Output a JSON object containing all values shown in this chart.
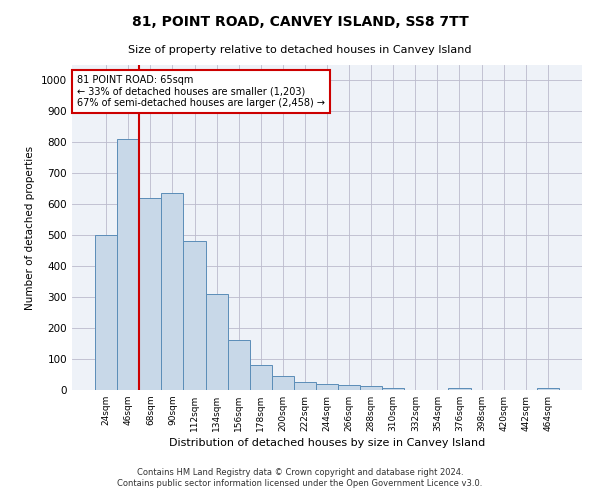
{
  "title": "81, POINT ROAD, CANVEY ISLAND, SS8 7TT",
  "subtitle": "Size of property relative to detached houses in Canvey Island",
  "xlabel": "Distribution of detached houses by size in Canvey Island",
  "ylabel": "Number of detached properties",
  "bar_color": "#c8d8e8",
  "bar_edge_color": "#5b8db8",
  "grid_color": "#bbbbcc",
  "bg_color": "#eef2f8",
  "annotation_box_color": "#cc0000",
  "vline_color": "#cc0000",
  "categories": [
    "24sqm",
    "46sqm",
    "68sqm",
    "90sqm",
    "112sqm",
    "134sqm",
    "156sqm",
    "178sqm",
    "200sqm",
    "222sqm",
    "244sqm",
    "266sqm",
    "288sqm",
    "310sqm",
    "332sqm",
    "354sqm",
    "376sqm",
    "398sqm",
    "420sqm",
    "442sqm",
    "464sqm"
  ],
  "values": [
    500,
    810,
    620,
    635,
    480,
    310,
    163,
    81,
    45,
    25,
    21,
    17,
    12,
    8,
    0,
    0,
    7,
    0,
    0,
    0,
    7
  ],
  "annotation_line1": "81 POINT ROAD: 65sqm",
  "annotation_line2": "← 33% of detached houses are smaller (1,203)",
  "annotation_line3": "67% of semi-detached houses are larger (2,458) →",
  "vline_bin_index": 2,
  "ylim": [
    0,
    1050
  ],
  "yticks": [
    0,
    100,
    200,
    300,
    400,
    500,
    600,
    700,
    800,
    900,
    1000
  ],
  "footnote1": "Contains HM Land Registry data © Crown copyright and database right 2024.",
  "footnote2": "Contains public sector information licensed under the Open Government Licence v3.0."
}
